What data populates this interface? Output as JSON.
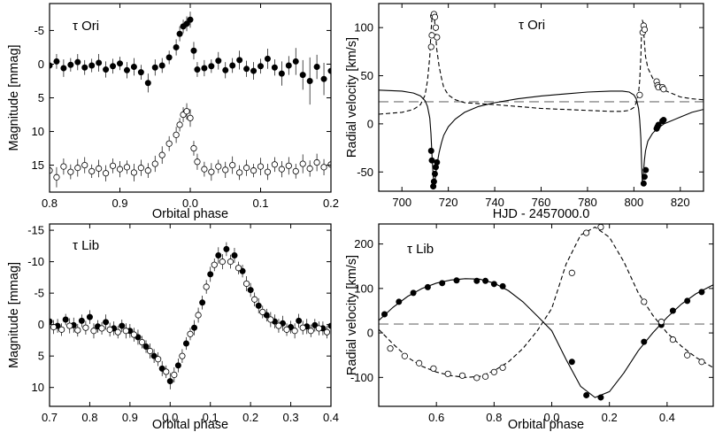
{
  "chart_data": [
    {
      "id": "tau-ori-light-curve",
      "type": "scatter",
      "title": "τ Ori",
      "xlabel": "Orbital phase",
      "ylabel": "Magnitude [mmag]",
      "y_inverted": true,
      "xlim": [
        0.8,
        1.2
      ],
      "ylim": [
        -9,
        19
      ],
      "xticks": [
        0.8,
        0.9,
        1.0,
        1.1,
        1.2
      ],
      "xtick_labels": [
        "0.8",
        "0.9",
        "0.0",
        "0.1",
        "0.2"
      ],
      "yticks": [
        -5,
        0,
        5,
        10,
        15
      ],
      "ytick_labels": [
        "-5",
        "0",
        "5",
        "10",
        "15"
      ],
      "series": [
        {
          "marker": "filled",
          "x": [
            0.8,
            0.81,
            0.82,
            0.83,
            0.84,
            0.85,
            0.86,
            0.87,
            0.88,
            0.89,
            0.9,
            0.91,
            0.92,
            0.93,
            0.94,
            0.95,
            0.96,
            0.97,
            0.98,
            0.985,
            0.99,
            0.995,
            1.0,
            1.005,
            1.01,
            1.02,
            1.03,
            1.04,
            1.05,
            1.06,
            1.07,
            1.08,
            1.09,
            1.1,
            1.11,
            1.12,
            1.13,
            1.14,
            1.15,
            1.16,
            1.17,
            1.18,
            1.19,
            1.2
          ],
          "y": [
            0.2,
            -0.4,
            0.6,
            0.1,
            -0.3,
            0.5,
            0.2,
            -0.2,
            0.8,
            0.3,
            -0.1,
            0.9,
            0.4,
            1.2,
            2.8,
            0.5,
            0.2,
            -1.0,
            -2.5,
            -4.5,
            -5.6,
            -6.0,
            -6.6,
            -2.0,
            0.8,
            0.6,
            0.3,
            -0.5,
            0.9,
            0.2,
            -0.6,
            0.7,
            1.0,
            0.3,
            -0.8,
            0.5,
            1.4,
            0.2,
            -0.4,
            1.6,
            2.5,
            0.4,
            2.2,
            1.0
          ],
          "err": [
            1.2,
            1.1,
            1.3,
            1.0,
            1.2,
            1.1,
            1.0,
            1.3,
            1.2,
            1.1,
            1.0,
            1.2,
            1.3,
            1.1,
            1.4,
            1.2,
            1.1,
            1.0,
            1.2,
            1.1,
            1.0,
            1.1,
            1.2,
            1.3,
            1.1,
            1.2,
            1.0,
            1.3,
            1.2,
            1.1,
            1.4,
            1.2,
            1.3,
            1.1,
            1.5,
            1.2,
            1.8,
            1.4,
            2.0,
            2.2,
            3.5,
            1.8,
            2.4,
            1.6
          ]
        },
        {
          "marker": "open",
          "x": [
            0.8,
            0.81,
            0.82,
            0.83,
            0.84,
            0.85,
            0.86,
            0.87,
            0.88,
            0.89,
            0.9,
            0.91,
            0.92,
            0.93,
            0.94,
            0.95,
            0.96,
            0.97,
            0.98,
            0.985,
            0.99,
            0.995,
            1.0,
            1.005,
            1.01,
            1.02,
            1.03,
            1.04,
            1.05,
            1.06,
            1.07,
            1.08,
            1.09,
            1.1,
            1.11,
            1.12,
            1.13,
            1.14,
            1.15,
            1.16,
            1.17,
            1.18,
            1.19,
            1.2
          ],
          "y": [
            15.8,
            16.8,
            15.2,
            16.0,
            15.4,
            15.0,
            15.9,
            15.5,
            16.2,
            15.1,
            15.6,
            15.3,
            16.1,
            15.4,
            15.8,
            14.8,
            13.5,
            11.8,
            10.5,
            9.0,
            7.5,
            7.0,
            8.0,
            12.5,
            14.5,
            15.6,
            16.0,
            15.2,
            15.7,
            15.0,
            16.1,
            15.4,
            15.8,
            15.2,
            16.0,
            14.9,
            15.6,
            15.1,
            15.9,
            14.8,
            15.5,
            14.6,
            15.3,
            14.9
          ],
          "err": [
            1.3,
            1.5,
            1.2,
            1.1,
            1.3,
            1.2,
            1.0,
            1.3,
            1.2,
            1.1,
            1.2,
            1.0,
            1.3,
            1.2,
            1.1,
            1.2,
            1.3,
            1.1,
            1.2,
            1.0,
            1.1,
            1.2,
            1.3,
            1.1,
            1.2,
            1.1,
            1.3,
            1.0,
            1.2,
            1.3,
            1.1,
            1.2,
            1.0,
            1.3,
            1.2,
            1.1,
            1.2,
            1.3,
            1.1,
            1.4,
            1.2,
            1.3,
            1.2,
            1.1
          ]
        }
      ]
    },
    {
      "id": "tau-ori-radial-velocity",
      "type": "line",
      "title": "τ Ori",
      "xlabel": "HJD - 2457000.0",
      "ylabel": "Radial velocity [km/s]",
      "xlim": [
        690,
        830
      ],
      "ylim": [
        -70,
        125
      ],
      "xticks": [
        700,
        720,
        740,
        760,
        780,
        800,
        820
      ],
      "yticks": [
        -50,
        0,
        50,
        100
      ],
      "reference_line": 23,
      "series": [
        {
          "style": "solid",
          "x": [
            690,
            700,
            705,
            708,
            710,
            711,
            712,
            712.5,
            713,
            713.5,
            714,
            714.5,
            715,
            716,
            717,
            718,
            720,
            723,
            727,
            733,
            740,
            750,
            760,
            770,
            780,
            790,
            795,
            798,
            800,
            801,
            802,
            802.5,
            803,
            803.3,
            803.6,
            804,
            804.5,
            805,
            806,
            808,
            810,
            813,
            816,
            820,
            825,
            830
          ],
          "y": [
            35,
            34,
            32,
            29,
            24,
            18,
            6,
            -10,
            -35,
            -55,
            -62,
            -55,
            -44,
            -30,
            -20,
            -12,
            -3,
            5,
            12,
            18,
            22,
            26,
            29,
            31,
            33,
            34,
            34,
            33,
            30,
            26,
            16,
            4,
            -15,
            -40,
            -60,
            -55,
            -38,
            -28,
            -18,
            -10,
            -5,
            0,
            3,
            7,
            12,
            15
          ]
        },
        {
          "style": "dashed",
          "x": [
            690,
            700,
            705,
            708,
            710,
            711,
            712,
            712.5,
            713,
            713.5,
            714,
            714.5,
            715,
            716,
            717,
            718,
            720,
            723,
            727,
            733,
            740,
            750,
            760,
            770,
            780,
            790,
            795,
            798,
            800,
            801,
            802,
            802.5,
            803,
            803.3,
            803.6,
            804,
            804.5,
            805,
            806,
            808,
            810,
            813,
            816,
            820,
            825,
            830
          ],
          "y": [
            10,
            12,
            15,
            20,
            30,
            45,
            70,
            95,
            112,
            114,
            110,
            95,
            78,
            60,
            48,
            38,
            30,
            25,
            22,
            21,
            20,
            18,
            16,
            15,
            14,
            13,
            13,
            14,
            17,
            22,
            32,
            45,
            70,
            95,
            108,
            105,
            85,
            70,
            58,
            48,
            40,
            35,
            32,
            28,
            26,
            25
          ]
        },
        {
          "marker": "filled",
          "x": [
            713.5,
            713.8,
            714.2,
            714.6,
            715.1,
            712.9,
            712.6,
            804.2,
            804.6,
            805.1,
            809.8,
            810.2,
            810.6,
            812.3,
            812.8
          ],
          "y": [
            -65,
            -60,
            -52,
            -45,
            -40,
            -38,
            -28,
            -62,
            -55,
            -48,
            -5,
            -3,
            -1,
            3,
            4
          ]
        },
        {
          "marker": "open",
          "x": [
            713.5,
            713.8,
            714.2,
            714.6,
            715.1,
            712.6,
            712.9,
            803.8,
            804.2,
            804.6,
            802.5,
            809.8,
            810.2,
            810.6,
            812.3,
            812.8
          ],
          "y": [
            112,
            114,
            111,
            100,
            90,
            80,
            92,
            95,
            102,
            98,
            30,
            44,
            40,
            38,
            38,
            36
          ]
        }
      ]
    },
    {
      "id": "tau-lib-light-curve",
      "type": "scatter",
      "title": "τ Lib",
      "xlabel": "Orbital phase",
      "ylabel": "Magnitude [mmag]",
      "y_inverted": true,
      "xlim": [
        0.7,
        1.4
      ],
      "ylim": [
        -16,
        13
      ],
      "xticks": [
        0.7,
        0.8,
        0.9,
        1.0,
        1.1,
        1.2,
        1.3,
        1.4
      ],
      "xtick_labels": [
        "0.7",
        "0.8",
        "0.9",
        "0.0",
        "0.1",
        "0.2",
        "0.3",
        "0.4"
      ],
      "yticks": [
        -15,
        -10,
        -5,
        0,
        5,
        10
      ],
      "ytick_labels": [
        "-15",
        "-10",
        "-5",
        "0",
        "5",
        "10"
      ],
      "series": [
        {
          "marker": "filled",
          "x": [
            0.7,
            0.72,
            0.74,
            0.76,
            0.78,
            0.8,
            0.82,
            0.84,
            0.86,
            0.88,
            0.9,
            0.92,
            0.94,
            0.96,
            0.98,
            1.0,
            1.02,
            1.04,
            1.06,
            1.08,
            1.1,
            1.12,
            1.14,
            1.16,
            1.18,
            1.2,
            1.22,
            1.24,
            1.26,
            1.28,
            1.3,
            1.32,
            1.34,
            1.36,
            1.38,
            1.4
          ],
          "y": [
            -0.5,
            0.2,
            -0.8,
            0.1,
            -0.6,
            -1.2,
            0.3,
            -0.4,
            0.6,
            0.2,
            1.0,
            2.0,
            3.5,
            5.0,
            7.0,
            9.0,
            6.5,
            3.0,
            0.5,
            -3.5,
            -8.0,
            -11.0,
            -12.0,
            -11.0,
            -8.5,
            -5.5,
            -3.0,
            -1.5,
            -0.5,
            -0.2,
            0.4,
            -0.6,
            0.3,
            0.1,
            0.6,
            0.2
          ],
          "err": [
            1.0,
            1.1,
            0.9,
            1.2,
            1.0,
            1.1,
            1.0,
            1.2,
            1.1,
            1.0,
            1.1,
            1.2,
            1.0,
            1.1,
            1.2,
            1.3,
            1.1,
            1.0,
            1.2,
            1.1,
            1.2,
            1.3,
            1.1,
            1.2,
            1.0,
            1.1,
            1.2,
            1.0,
            1.1,
            1.2,
            1.0,
            1.1,
            1.2,
            1.0,
            1.1,
            1.2
          ]
        },
        {
          "marker": "open",
          "x": [
            0.71,
            0.73,
            0.75,
            0.77,
            0.79,
            0.81,
            0.83,
            0.85,
            0.87,
            0.89,
            0.91,
            0.93,
            0.95,
            0.97,
            0.99,
            1.01,
            1.03,
            1.05,
            1.07,
            1.09,
            1.11,
            1.13,
            1.15,
            1.17,
            1.19,
            1.21,
            1.23,
            1.25,
            1.27,
            1.29,
            1.31,
            1.33,
            1.35,
            1.37,
            1.39
          ],
          "y": [
            0.4,
            0.8,
            0.2,
            0.9,
            0.5,
            1.0,
            0.6,
            0.8,
            1.2,
            1.0,
            1.6,
            2.8,
            4.2,
            5.5,
            7.5,
            8.0,
            5.0,
            1.5,
            -1.5,
            -6.0,
            -9.5,
            -10.0,
            -10.0,
            -9.0,
            -6.5,
            -4.0,
            -2.0,
            -0.8,
            0.2,
            0.8,
            1.0,
            0.5,
            1.0,
            0.6,
            1.2
          ],
          "err": [
            1.1,
            1.0,
            1.2,
            1.0,
            1.1,
            1.2,
            1.0,
            1.1,
            1.0,
            1.2,
            1.1,
            1.0,
            1.2,
            1.1,
            1.0,
            1.2,
            1.1,
            1.0,
            1.2,
            1.1,
            1.0,
            1.2,
            1.1,
            1.0,
            1.2,
            1.1,
            1.0,
            1.2,
            1.1,
            1.0,
            1.2,
            1.1,
            1.0,
            1.1,
            1.0
          ]
        }
      ]
    },
    {
      "id": "tau-lib-radial-velocity",
      "type": "line",
      "title": "τ Lib",
      "xlabel": "Orbital phase",
      "ylabel": "Radial velocity [km/s]",
      "xlim": [
        0.4,
        1.56
      ],
      "ylim": [
        -165,
        245
      ],
      "xticks": [
        0.6,
        0.8,
        1.0,
        1.2,
        1.4
      ],
      "xtick_labels": [
        "0.6",
        "0.8",
        "0.0",
        "0.2",
        "0.4"
      ],
      "yticks": [
        -100,
        0,
        100,
        200
      ],
      "reference_line": 20,
      "series": [
        {
          "style": "solid",
          "x": [
            0.4,
            0.45,
            0.5,
            0.55,
            0.6,
            0.65,
            0.7,
            0.75,
            0.8,
            0.85,
            0.9,
            0.95,
            1.0,
            1.05,
            1.1,
            1.15,
            1.2,
            1.25,
            1.3,
            1.35,
            1.4,
            1.45,
            1.5,
            1.56
          ],
          "y": [
            28,
            58,
            82,
            100,
            112,
            119,
            122,
            121,
            112,
            95,
            70,
            38,
            5,
            -60,
            -120,
            -145,
            -132,
            -90,
            -40,
            0,
            35,
            65,
            88,
            108
          ]
        },
        {
          "style": "dashed",
          "x": [
            0.4,
            0.45,
            0.5,
            0.55,
            0.6,
            0.65,
            0.7,
            0.75,
            0.8,
            0.85,
            0.9,
            0.95,
            1.0,
            1.05,
            1.1,
            1.15,
            1.2,
            1.25,
            1.3,
            1.35,
            1.4,
            1.45,
            1.5,
            1.56
          ],
          "y": [
            8,
            -25,
            -55,
            -75,
            -88,
            -96,
            -100,
            -98,
            -85,
            -65,
            -35,
            5,
            55,
            155,
            220,
            238,
            215,
            160,
            90,
            40,
            0,
            -30,
            -55,
            -78
          ]
        },
        {
          "marker": "filled",
          "x": [
            0.42,
            0.47,
            0.52,
            0.57,
            0.62,
            0.67,
            0.74,
            0.77,
            0.8,
            0.83,
            1.07,
            1.12,
            1.17,
            1.32,
            1.38,
            1.42,
            1.47,
            1.52
          ],
          "y": [
            42,
            70,
            90,
            103,
            112,
            118,
            117,
            117,
            110,
            105,
            -65,
            -140,
            -145,
            -20,
            18,
            50,
            72,
            92
          ]
        },
        {
          "marker": "open",
          "x": [
            0.44,
            0.49,
            0.54,
            0.59,
            0.64,
            0.69,
            0.74,
            0.77,
            0.8,
            0.83,
            1.07,
            1.12,
            1.17,
            1.32,
            1.38,
            1.42,
            1.47,
            1.52
          ],
          "y": [
            -35,
            -52,
            -68,
            -80,
            -92,
            -96,
            -101,
            -98,
            -88,
            -78,
            135,
            225,
            238,
            70,
            25,
            -15,
            -50,
            -65
          ]
        }
      ]
    }
  ]
}
